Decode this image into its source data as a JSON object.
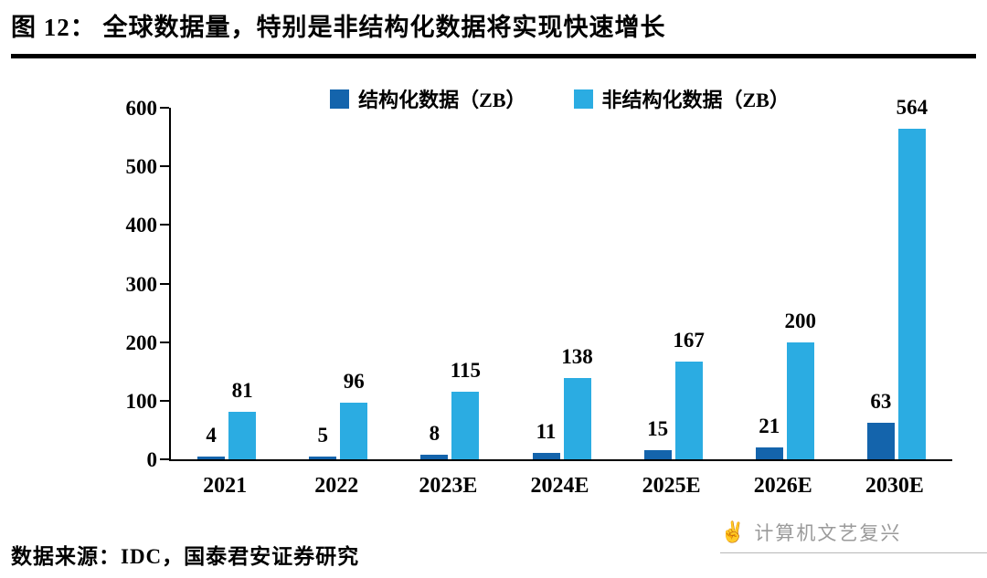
{
  "header": {
    "title": "图 12：  全球数据量，特别是非结构化数据将实现快速增长"
  },
  "chart_data": {
    "type": "bar",
    "title": "全球数据量，特别是非结构化数据将实现快速增长",
    "categories": [
      "2021",
      "2022",
      "2023E",
      "2024E",
      "2025E",
      "2026E",
      "2030E"
    ],
    "series": [
      {
        "name": "结构化数据（ZB）",
        "color": "#1464ac",
        "values": [
          4,
          5,
          8,
          11,
          15,
          21,
          63
        ]
      },
      {
        "name": "非结构化数据（ZB）",
        "color": "#2bace2",
        "values": [
          81,
          96,
          115,
          138,
          167,
          200,
          564
        ]
      }
    ],
    "ylim": [
      0,
      600
    ],
    "yticks": [
      0,
      100,
      200,
      300,
      400,
      500,
      600
    ],
    "xlabel": "",
    "ylabel": "",
    "grid": false,
    "legend_position": "top"
  },
  "footer": {
    "source": "数据来源：IDC，国泰君安证券研究",
    "watermark": "计算机文艺复兴"
  }
}
